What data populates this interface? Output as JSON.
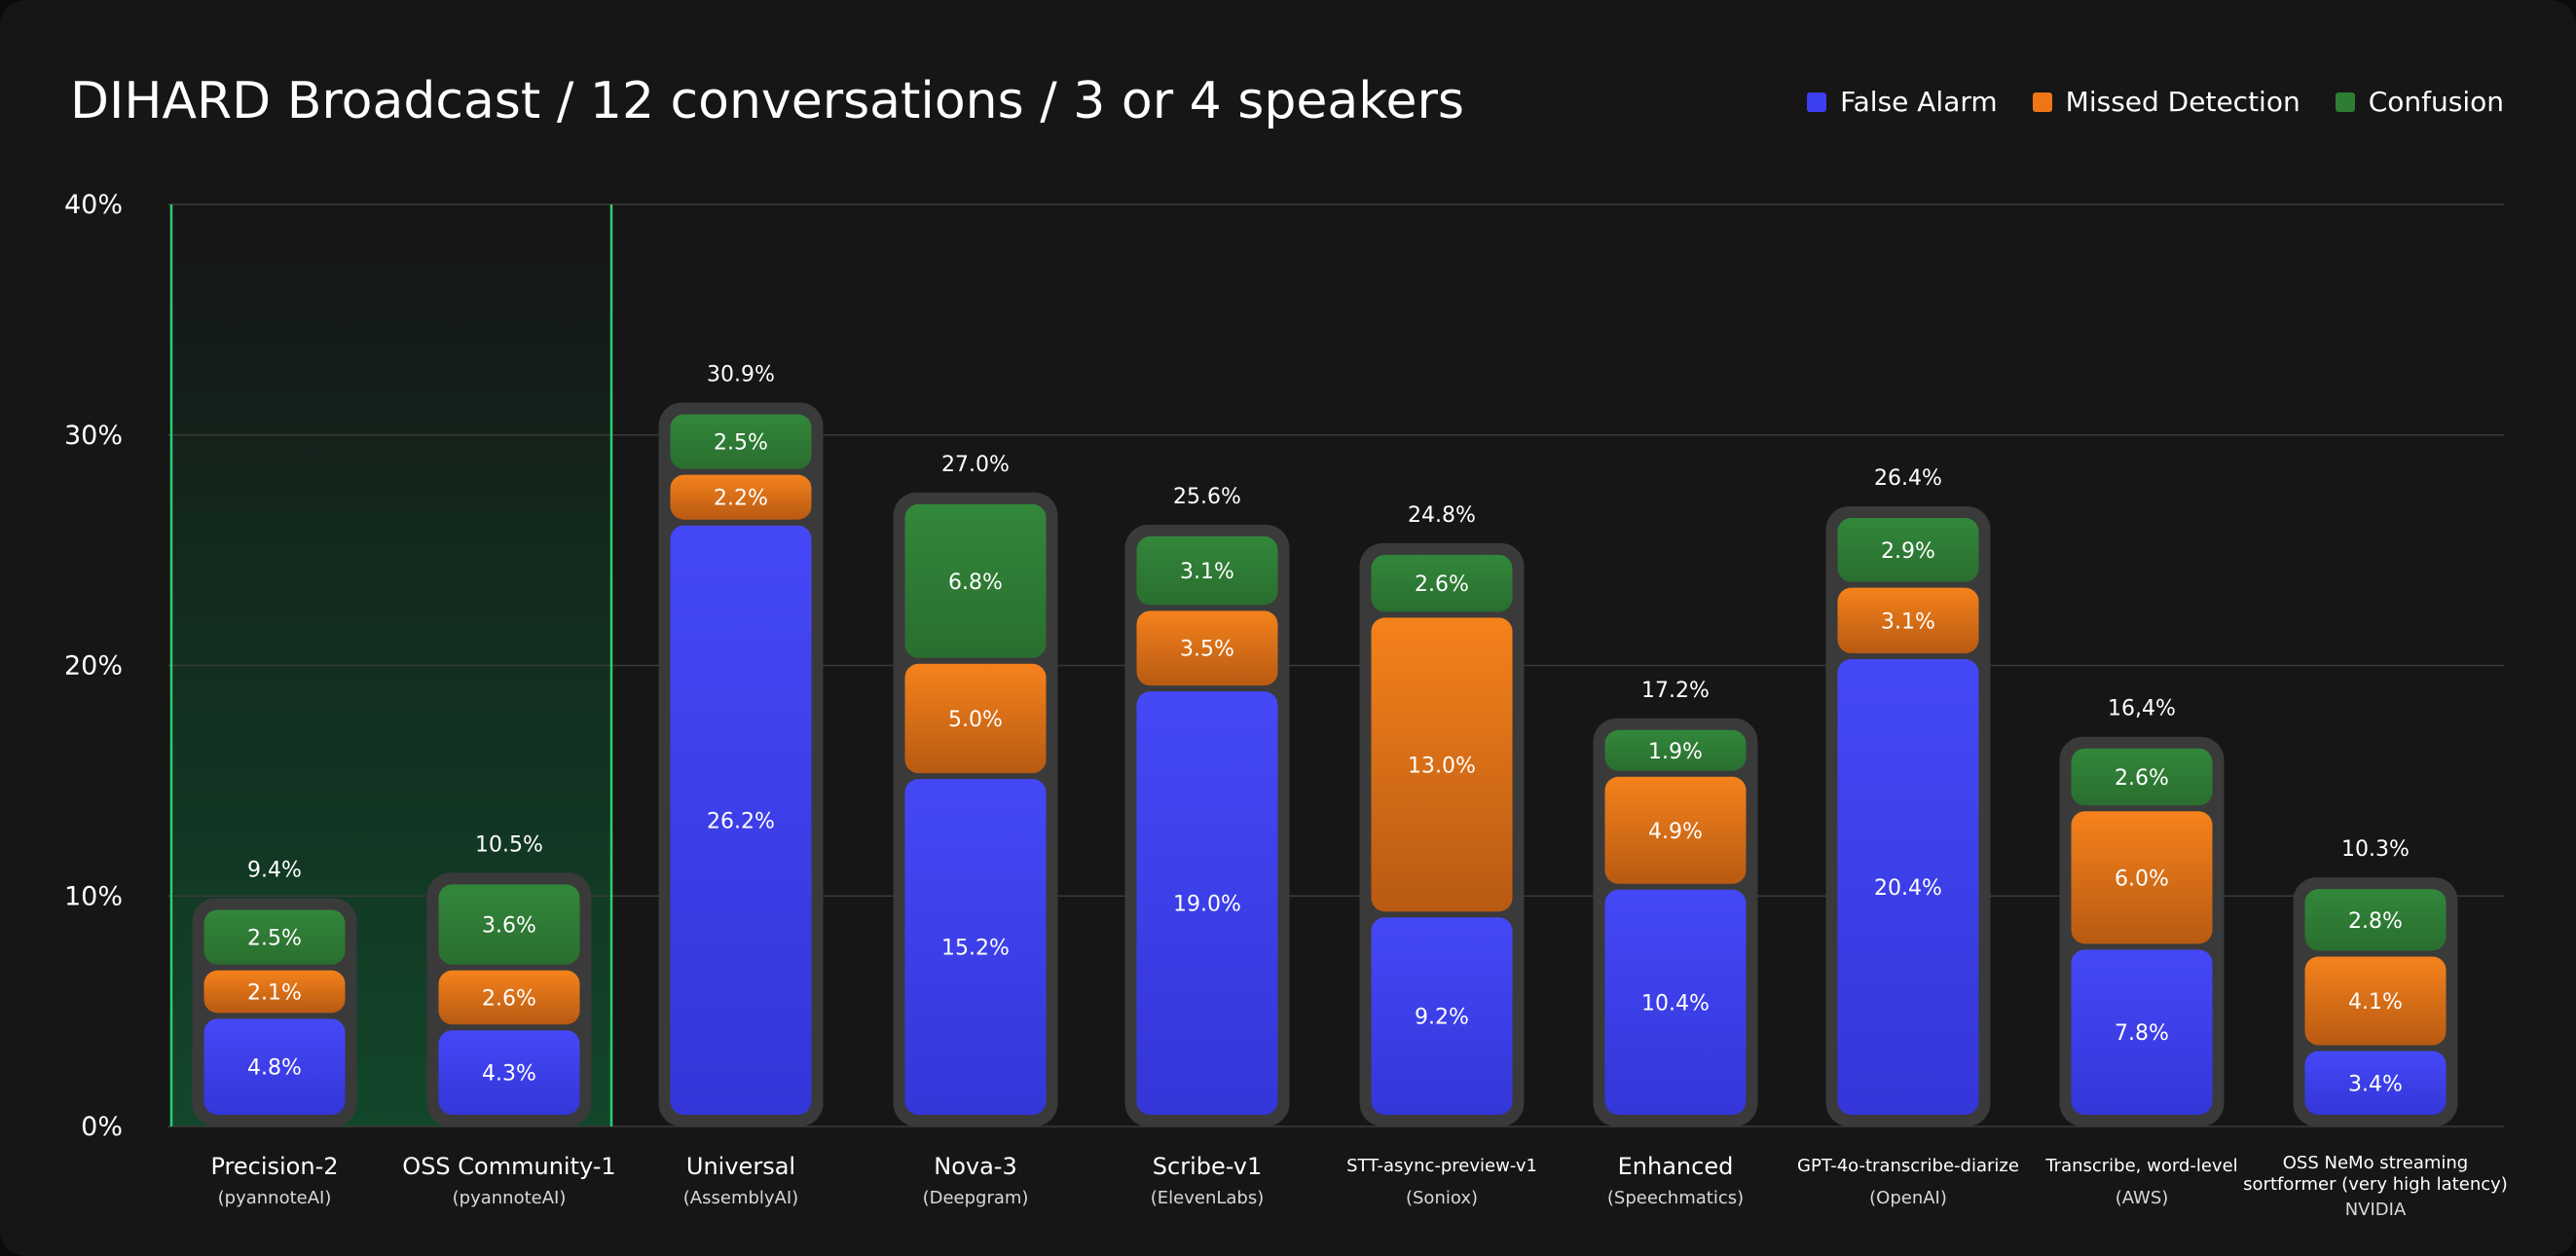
{
  "colors": {
    "false_alarm": "#3c3ff0",
    "missed_detection": "#ef7616",
    "confusion": "#2e7d32",
    "highlight_line": "#2ecc71"
  },
  "chart_data": {
    "type": "bar",
    "stacked": true,
    "title": "DIHARD Broadcast / 12 conversations / 3 or 4 speakers",
    "legend_position": "top-right",
    "grid": true,
    "ylim": [
      0,
      40
    ],
    "yticks": [
      "0%",
      "10%",
      "20%",
      "30%",
      "40%"
    ],
    "highlighted_categories": [
      0,
      1
    ],
    "categories": [
      {
        "name": "Precision-2",
        "sub": "(pyannoteAI)"
      },
      {
        "name": "OSS Community-1",
        "sub": "(pyannoteAI)"
      },
      {
        "name": "Universal",
        "sub": "(AssemblyAI)"
      },
      {
        "name": "Nova-3",
        "sub": "(Deepgram)"
      },
      {
        "name": "Scribe-v1",
        "sub": "(ElevenLabs)"
      },
      {
        "name": "STT-async-preview-v1",
        "sub": "(Soniox)"
      },
      {
        "name": "Enhanced",
        "sub": "(Speechmatics)"
      },
      {
        "name": "GPT-4o-transcribe-diarize",
        "sub": "(OpenAI)"
      },
      {
        "name": "Transcribe, word-level",
        "sub": "(AWS)"
      },
      {
        "name": "OSS NeMo streaming sortformer (very high latency)",
        "sub": "NVIDIA"
      }
    ],
    "totals": [
      "9.4%",
      "10.5%",
      "30.9%",
      "27.0%",
      "25.6%",
      "24.8%",
      "17.2%",
      "26.4%",
      "16,4%",
      "10.3%"
    ],
    "series": [
      {
        "name": "False Alarm",
        "values": [
          4.8,
          4.3,
          26.2,
          15.2,
          19.0,
          9.2,
          10.4,
          20.4,
          7.8,
          3.4
        ]
      },
      {
        "name": "Missed Detection",
        "values": [
          2.1,
          2.6,
          2.2,
          5.0,
          3.5,
          13.0,
          4.9,
          3.1,
          6.0,
          4.1
        ]
      },
      {
        "name": "Confusion",
        "values": [
          2.5,
          3.6,
          2.5,
          6.8,
          3.1,
          2.6,
          1.9,
          2.9,
          2.6,
          2.8
        ]
      }
    ]
  }
}
